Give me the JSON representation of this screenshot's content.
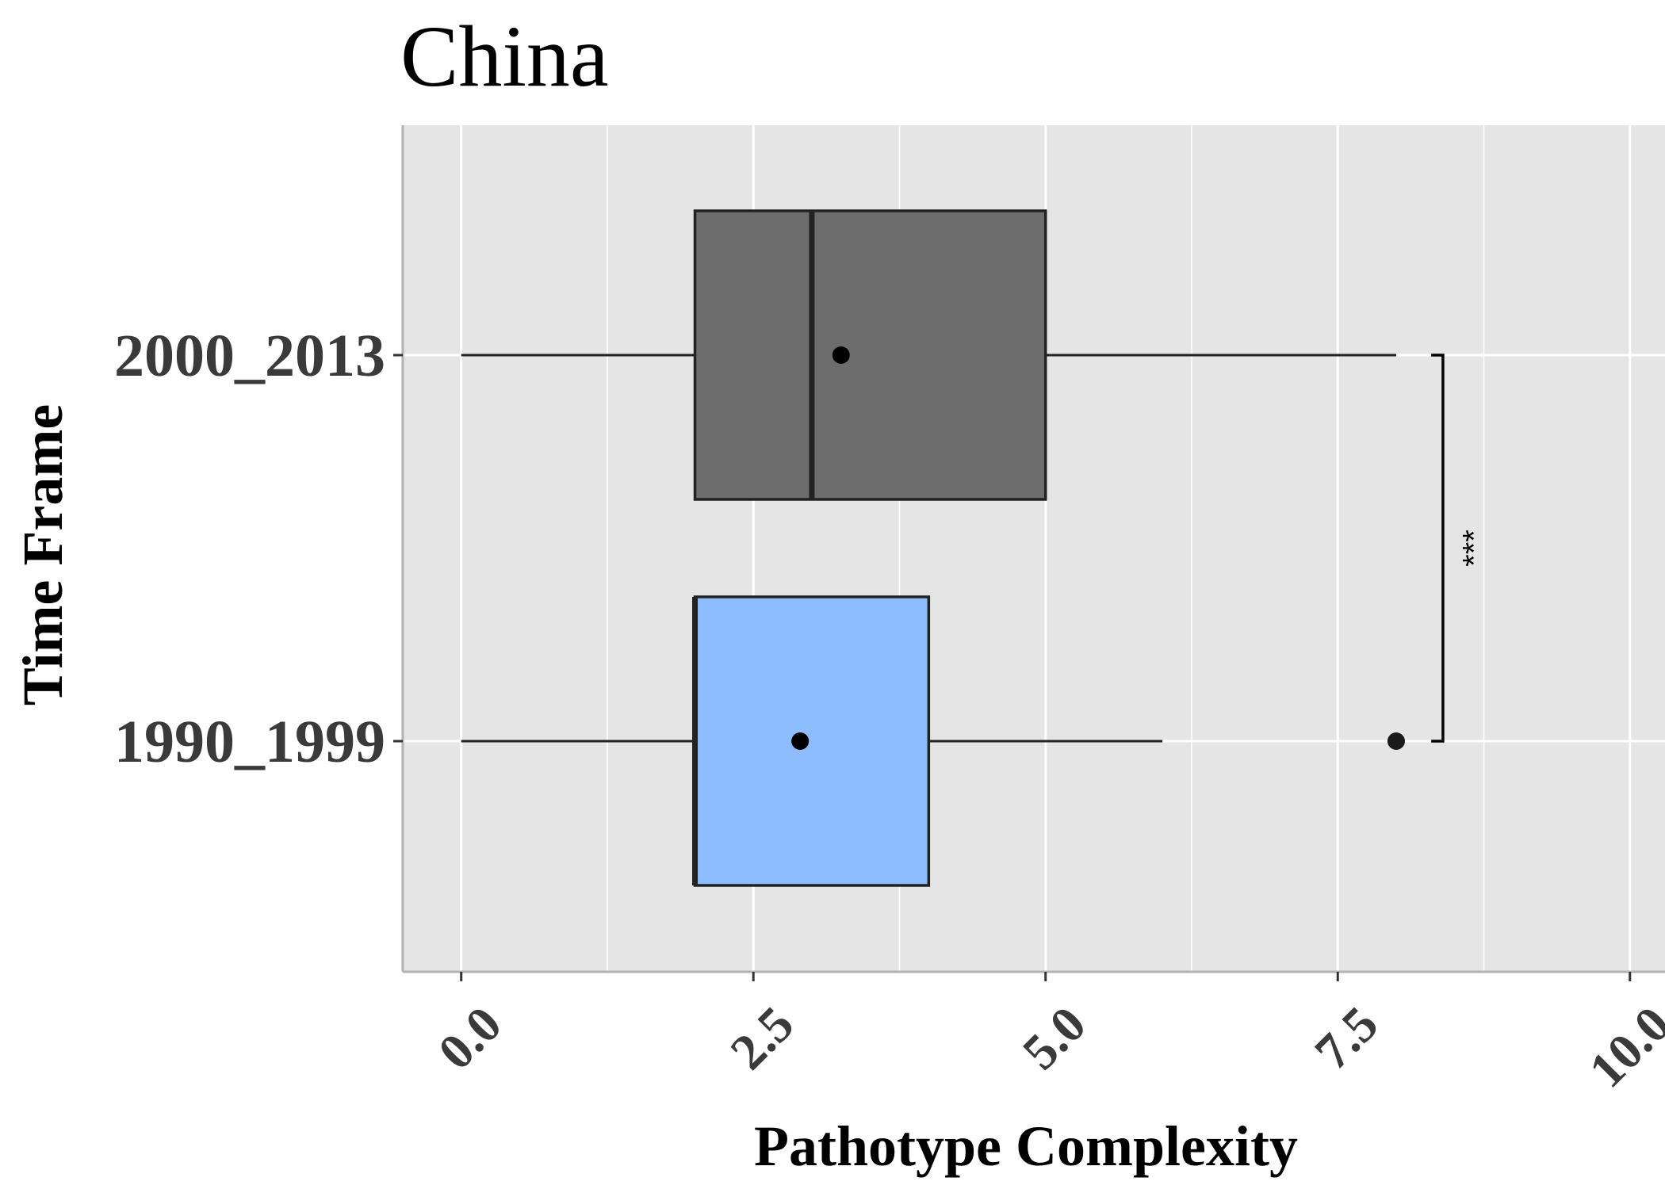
{
  "chart_data": {
    "type": "boxplot",
    "orientation": "horizontal",
    "title": "China",
    "xlabel": "Pathotype Complexity",
    "ylabel": "Time Frame",
    "xlim": [
      -0.5,
      10.3
    ],
    "x_ticks": [
      0,
      2.5,
      5,
      7.5,
      10
    ],
    "x_tick_labels": [
      "0.0",
      "2.5",
      "5.0",
      "7.5",
      "10.0"
    ],
    "categories": [
      "1990_1999",
      "2000_2013"
    ],
    "grid": true,
    "boxes": [
      {
        "category": "1990_1999",
        "whisker_low": 0,
        "q1": 2,
        "median": 2,
        "q3": 4,
        "whisker_high": 6,
        "mean": 2.9,
        "outliers": [
          8
        ],
        "fill": "#8ebdff"
      },
      {
        "category": "2000_2013",
        "whisker_low": 0,
        "q1": 2,
        "median": 3,
        "q3": 5,
        "whisker_high": 8,
        "mean": 3.25,
        "outliers": [],
        "fill": "#6d6d6d"
      }
    ],
    "significance": {
      "label": "***",
      "between": [
        "1990_1999",
        "2000_2013"
      ],
      "x": 8.4
    },
    "colors": {
      "panel_background": "#e5e5e5",
      "grid": "#ffffff",
      "box_outline": "#222222"
    }
  }
}
